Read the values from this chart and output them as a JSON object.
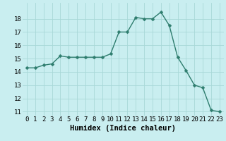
{
  "x": [
    0,
    1,
    2,
    3,
    4,
    5,
    6,
    7,
    8,
    9,
    10,
    11,
    12,
    13,
    14,
    15,
    16,
    17,
    18,
    19,
    20,
    21,
    22,
    23
  ],
  "y": [
    14.3,
    14.3,
    14.5,
    14.6,
    15.2,
    15.1,
    15.1,
    15.1,
    15.1,
    15.1,
    15.35,
    17.0,
    17.0,
    18.1,
    18.0,
    18.0,
    18.5,
    17.5,
    15.1,
    14.1,
    13.0,
    12.8,
    11.1,
    11.0
  ],
  "line_color": "#2e7d6e",
  "marker_color": "#2e7d6e",
  "bg_color": "#c9eef0",
  "grid_color": "#a8d8d8",
  "xlabel": "Humidex (Indice chaleur)",
  "ylim_min": 10.7,
  "ylim_max": 19.2,
  "xlim_min": -0.5,
  "xlim_max": 23.5,
  "yticks": [
    11,
    12,
    13,
    14,
    15,
    16,
    17,
    18
  ],
  "xticks": [
    0,
    1,
    2,
    3,
    4,
    5,
    6,
    7,
    8,
    9,
    10,
    11,
    12,
    13,
    14,
    15,
    16,
    17,
    18,
    19,
    20,
    21,
    22,
    23
  ],
  "xlabel_fontsize": 7.5,
  "tick_fontsize": 6.5,
  "line_width": 1.0,
  "marker_size": 2.5
}
